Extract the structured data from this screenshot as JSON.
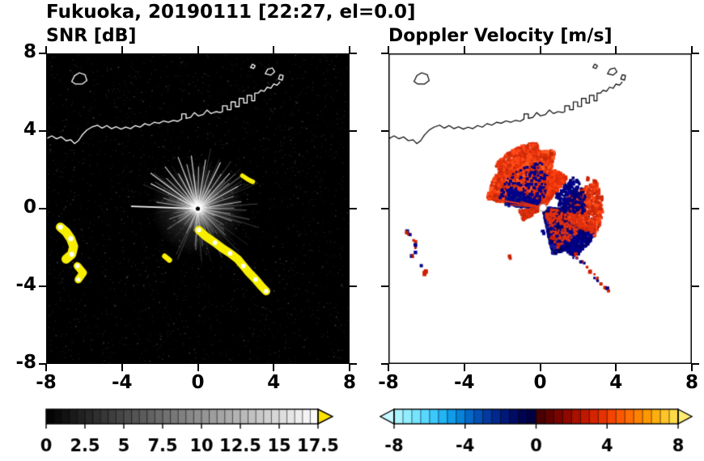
{
  "title": "Fukuoka, 20190111 [22:27, el=0.0]",
  "panels": {
    "snr": {
      "subtitle": "SNR [dB]"
    },
    "doppler": {
      "subtitle": "Doppler Velocity [m/s]"
    }
  },
  "axes": {
    "xlim": [
      -8,
      8
    ],
    "ylim": [
      -8,
      8
    ],
    "xticks": [
      -8,
      -4,
      0,
      4,
      8
    ],
    "yticks": [
      8,
      4,
      0,
      -4,
      -8
    ],
    "xtick_labels": [
      "-8",
      "-4",
      "0",
      "4",
      "8"
    ],
    "ytick_labels": [
      "8",
      "4",
      "0",
      "-4",
      "-8"
    ]
  },
  "coastline": {
    "mainland": [
      [
        -8.0,
        3.6
      ],
      [
        -7.7,
        3.75
      ],
      [
        -7.45,
        3.6
      ],
      [
        -7.2,
        3.7
      ],
      [
        -6.95,
        3.5
      ],
      [
        -6.7,
        3.55
      ],
      [
        -6.5,
        3.35
      ],
      [
        -6.3,
        3.5
      ],
      [
        -6.1,
        3.8
      ],
      [
        -5.85,
        4.05
      ],
      [
        -5.6,
        4.2
      ],
      [
        -5.3,
        4.3
      ],
      [
        -5.05,
        4.15
      ],
      [
        -4.8,
        4.28
      ],
      [
        -4.55,
        4.12
      ],
      [
        -4.3,
        4.22
      ],
      [
        -4.05,
        4.1
      ],
      [
        -3.8,
        4.2
      ],
      [
        -3.55,
        4.12
      ],
      [
        -3.3,
        4.28
      ],
      [
        -3.05,
        4.2
      ],
      [
        -2.8,
        4.38
      ],
      [
        -2.55,
        4.3
      ],
      [
        -2.3,
        4.45
      ],
      [
        -2.05,
        4.4
      ],
      [
        -1.8,
        4.52
      ],
      [
        -1.55,
        4.45
      ],
      [
        -1.3,
        4.55
      ],
      [
        -1.05,
        4.5
      ],
      [
        -0.85,
        4.62
      ],
      [
        -0.85,
        4.88
      ],
      [
        -0.62,
        4.88
      ],
      [
        -0.62,
        4.65
      ],
      [
        -0.38,
        4.7
      ],
      [
        -0.18,
        4.95
      ],
      [
        0.02,
        4.78
      ],
      [
        0.28,
        4.85
      ],
      [
        0.48,
        5.08
      ],
      [
        0.7,
        4.9
      ],
      [
        0.95,
        5.0
      ],
      [
        1.18,
        4.95
      ],
      [
        1.3,
        5.0
      ],
      [
        1.3,
        5.3
      ],
      [
        1.55,
        5.3
      ],
      [
        1.55,
        5.1
      ],
      [
        1.75,
        5.1
      ],
      [
        1.75,
        5.5
      ],
      [
        1.98,
        5.5
      ],
      [
        1.98,
        5.26
      ],
      [
        2.18,
        5.26
      ],
      [
        2.18,
        5.68
      ],
      [
        2.42,
        5.68
      ],
      [
        2.42,
        5.44
      ],
      [
        2.6,
        5.44
      ],
      [
        2.6,
        5.84
      ],
      [
        2.84,
        5.84
      ],
      [
        2.84,
        5.56
      ],
      [
        3.0,
        5.56
      ],
      [
        3.0,
        5.95
      ],
      [
        3.18,
        5.95
      ],
      [
        3.32,
        6.1
      ],
      [
        3.5,
        6.05
      ],
      [
        3.66,
        6.26
      ],
      [
        3.85,
        6.2
      ],
      [
        4.0,
        6.42
      ],
      [
        4.18,
        6.36
      ],
      [
        4.32,
        6.52
      ]
    ],
    "islands": [
      [
        [
          -6.65,
          6.55
        ],
        [
          -6.5,
          6.85
        ],
        [
          -6.25,
          7.0
        ],
        [
          -5.95,
          6.9
        ],
        [
          -5.85,
          6.6
        ],
        [
          -6.1,
          6.42
        ],
        [
          -6.45,
          6.42
        ]
      ],
      [
        [
          3.55,
          6.95
        ],
        [
          3.68,
          7.18
        ],
        [
          3.93,
          7.25
        ],
        [
          4.05,
          7.05
        ],
        [
          3.85,
          6.88
        ]
      ],
      [
        [
          4.25,
          6.68
        ],
        [
          4.33,
          6.9
        ],
        [
          4.5,
          6.86
        ],
        [
          4.45,
          6.62
        ]
      ],
      [
        [
          2.78,
          7.28
        ],
        [
          2.88,
          7.45
        ],
        [
          3.02,
          7.36
        ],
        [
          2.94,
          7.22
        ]
      ]
    ]
  },
  "echoes": {
    "chains": [
      {
        "name": "west-arc-upper",
        "points": [
          [
            -7.25,
            -0.95
          ],
          [
            -6.95,
            -1.2
          ],
          [
            -6.7,
            -1.55
          ],
          [
            -6.55,
            -1.95
          ],
          [
            -6.65,
            -2.35
          ],
          [
            -6.95,
            -2.6
          ]
        ],
        "r": 0.24
      },
      {
        "name": "west-arc-lower",
        "points": [
          [
            -6.35,
            -2.95
          ],
          [
            -6.05,
            -3.3
          ],
          [
            -6.3,
            -3.65
          ]
        ],
        "r": 0.2
      },
      {
        "name": "southeast-arc",
        "points": [
          [
            0.05,
            -1.1
          ],
          [
            0.45,
            -1.45
          ],
          [
            0.9,
            -1.75
          ],
          [
            1.3,
            -2.05
          ],
          [
            1.7,
            -2.3
          ],
          [
            2.1,
            -2.6
          ],
          [
            2.4,
            -2.95
          ],
          [
            2.7,
            -3.3
          ],
          [
            3.05,
            -3.65
          ],
          [
            3.35,
            -4.0
          ],
          [
            3.6,
            -4.25
          ]
        ],
        "r": 0.22
      },
      {
        "name": "small-dash-southwest",
        "points": [
          [
            -1.75,
            -2.45
          ],
          [
            -1.5,
            -2.65
          ]
        ],
        "r": 0.14
      },
      {
        "name": "small-dash-northeast",
        "points": [
          [
            2.35,
            1.7
          ],
          [
            2.65,
            1.5
          ],
          [
            2.9,
            1.38
          ]
        ],
        "r": 0.12
      }
    ]
  },
  "chart_data": [
    {
      "type": "heatmap",
      "title": "SNR [dB]",
      "xlabel": "",
      "ylabel": "",
      "xlim": [
        -8,
        8
      ],
      "ylim": [
        -8,
        8
      ],
      "xticks": [
        -8,
        -4,
        0,
        4,
        8
      ],
      "yticks": [
        -8,
        -4,
        0,
        4,
        8
      ],
      "background": "#000000",
      "radar_center": [
        0,
        0
      ],
      "echo_color": "#f8ef00",
      "clutter": {
        "seed": 13,
        "ray_count": 150,
        "noise_count": 2600,
        "max_range_km": 3.0
      },
      "bright_rays": [
        [
          178,
          3.5,
          1.6,
          0.95
        ],
        [
          171,
          2.2,
          1.1,
          0.65
        ],
        [
          163,
          1.9,
          1.0,
          0.55
        ],
        [
          152,
          2.8,
          1.3,
          0.8
        ],
        [
          143,
          3.1,
          1.3,
          0.85
        ],
        [
          136,
          2.3,
          1.1,
          0.65
        ],
        [
          128,
          2.8,
          1.2,
          0.75
        ],
        [
          119,
          2.1,
          1.3,
          0.75
        ],
        [
          111,
          2.9,
          1.2,
          0.8
        ],
        [
          104,
          2.4,
          1.1,
          0.7
        ],
        [
          97,
          2.8,
          1.3,
          0.8
        ],
        [
          89,
          2.2,
          1.1,
          0.7
        ],
        [
          81,
          2.6,
          1.2,
          0.78
        ],
        [
          73,
          2.1,
          1.0,
          0.65
        ],
        [
          64,
          2.7,
          1.3,
          0.78
        ],
        [
          56,
          2.2,
          1.0,
          0.65
        ],
        [
          48,
          2.5,
          1.2,
          0.72
        ],
        [
          39,
          2.1,
          1.0,
          0.65
        ],
        [
          29,
          2.4,
          1.2,
          0.7
        ],
        [
          19,
          2.0,
          1.0,
          0.6
        ],
        [
          9,
          2.3,
          1.1,
          0.68
        ],
        [
          1,
          1.9,
          1.0,
          0.55
        ],
        [
          -9,
          1.7,
          1.0,
          0.5
        ],
        [
          -20,
          1.9,
          1.0,
          0.55
        ],
        [
          -32,
          1.6,
          0.9,
          0.5
        ],
        [
          -44,
          2.0,
          1.0,
          0.6
        ],
        [
          -57,
          1.5,
          0.9,
          0.5
        ],
        [
          -70,
          1.2,
          0.9,
          0.45
        ],
        [
          -85,
          1.0,
          0.8,
          0.4
        ],
        [
          -100,
          1.2,
          0.9,
          0.45
        ],
        [
          -115,
          1.4,
          0.9,
          0.5
        ],
        [
          -130,
          1.1,
          0.8,
          0.42
        ],
        [
          -145,
          1.3,
          0.9,
          0.48
        ],
        [
          -160,
          1.6,
          0.9,
          0.5
        ]
      ],
      "colorbar": {
        "min": 0,
        "max": 17.5,
        "step": 0.5,
        "tick_values": [
          0,
          2.5,
          5,
          7.5,
          10,
          12.5,
          15,
          17.5
        ],
        "tick_labels": [
          "0",
          "2.5",
          "5",
          "7.5",
          "10",
          "12.5",
          "15",
          "17.5"
        ],
        "scale": [
          "#000000",
          "#ffffff"
        ],
        "over_arrow_color": "#ffe100"
      }
    },
    {
      "type": "heatmap",
      "title": "Doppler Velocity [m/s]",
      "xlabel": "",
      "ylabel": "",
      "xlim": [
        -8,
        8
      ],
      "ylim": [
        -8,
        8
      ],
      "xticks": [
        -8,
        -4,
        0,
        4,
        8
      ],
      "yticks": [
        -8,
        -4,
        0,
        4,
        8
      ],
      "background": "#ffffff",
      "center_offset": [
        0.15,
        0.05
      ],
      "velocity_colors": {
        "toward": "#cf1e00",
        "away": "#00008b"
      },
      "regions": [
        {
          "name": "red-fan-main",
          "a0": 78,
          "a1": 172,
          "r0": 0.2,
          "r1": 2.95,
          "n": 3000,
          "size": 3.4,
          "pow": 0.6,
          "seed": 21,
          "colors": [
            "#e8320a",
            "#ff4012",
            "#c22808",
            "#ff5c20",
            "#d93010"
          ]
        },
        {
          "name": "red-fan-north-bump",
          "a0": 95,
          "a1": 140,
          "r0": 2.5,
          "r1": 3.35,
          "n": 520,
          "size": 3.2,
          "pow": 0.8,
          "seed": 22,
          "colors": [
            "#e8320a",
            "#ff4a18",
            "#cc2c0c"
          ]
        },
        {
          "name": "red-upper-right",
          "a0": 50,
          "a1": 80,
          "r0": 0.2,
          "r1": 2.0,
          "n": 600,
          "size": 3.2,
          "pow": 0.7,
          "seed": 23,
          "colors": [
            "#e8320a",
            "#ff4012",
            "#d22a08"
          ]
        },
        {
          "name": "navy-lobe-southeast",
          "a0": -78,
          "a1": -5,
          "r0": 0.2,
          "r1": 2.45,
          "n": 2600,
          "size": 3.4,
          "pow": 0.6,
          "seed": 24,
          "colors": [
            "#00008b",
            "#000070",
            "#1a1a9c",
            "#000058"
          ]
        },
        {
          "name": "navy-spikes-southeast",
          "a0": -60,
          "a1": -22,
          "r0": 2.2,
          "r1": 3.05,
          "n": 420,
          "size": 3.0,
          "pow": 0.9,
          "seed": 25,
          "colors": [
            "#00008b",
            "#000070"
          ]
        },
        {
          "name": "red-fringe-east",
          "a0": -28,
          "a1": 25,
          "r0": 1.4,
          "r1": 3.15,
          "n": 760,
          "size": 3.0,
          "pow": 0.8,
          "seed": 26,
          "colors": [
            "#e03010",
            "#ff4a18",
            "#c82808"
          ]
        },
        {
          "name": "navy-edge-west",
          "a0": 148,
          "a1": 178,
          "r0": 0.4,
          "r1": 2.0,
          "n": 320,
          "size": 3.0,
          "pow": 0.8,
          "seed": 27,
          "colors": [
            "#00008b",
            "#141e78"
          ]
        },
        {
          "name": "navy-speckle-in-red",
          "a0": 80,
          "a1": 168,
          "r0": 0.3,
          "r1": 2.4,
          "n": 220,
          "size": 2.6,
          "pow": 0.7,
          "seed": 28,
          "colors": [
            "#00008b"
          ]
        },
        {
          "name": "red-speckle-in-navy",
          "a0": -72,
          "a1": -8,
          "r0": 0.3,
          "r1": 2.2,
          "n": 200,
          "size": 2.6,
          "pow": 0.7,
          "seed": 29,
          "colors": [
            "#e03010"
          ]
        },
        {
          "name": "navy-speckle-east",
          "a0": -8,
          "a1": 45,
          "r0": 0.8,
          "r1": 2.3,
          "n": 260,
          "size": 2.8,
          "pow": 0.8,
          "seed": 30,
          "colors": [
            "#00008b",
            "#000070"
          ]
        },
        {
          "name": "red-wisp-west",
          "a0": 186,
          "a1": 214,
          "r0": 0.3,
          "r1": 1.25,
          "n": 140,
          "size": 2.6,
          "pow": 0.8,
          "seed": 31,
          "colors": [
            "#e03010",
            "#c82808"
          ]
        }
      ],
      "rays": [
        [
          170,
          2.75,
          2.2,
          "#e03010"
        ],
        [
          175,
          1.7,
          1.6,
          "#e03010"
        ],
        [
          165,
          1.2,
          1.4,
          "#e03010"
        ]
      ],
      "colorbar": {
        "min": -8,
        "max": 8,
        "step": 0.5,
        "tick_values": [
          -8,
          -4,
          0,
          4,
          8
        ],
        "tick_labels": [
          "-8",
          "-4",
          "0",
          "4",
          "8"
        ],
        "segment_colors": [
          "#a8f4ff",
          "#90eeff",
          "#74e4ff",
          "#58d8ff",
          "#3cc8fc",
          "#22b4f4",
          "#0f9ce8",
          "#0682d8",
          "#0468c8",
          "#0350b4",
          "#023aa0",
          "#01288c",
          "#001878",
          "#000c64",
          "#000450",
          "#000040",
          "#480000",
          "#600000",
          "#780400",
          "#900800",
          "#a81000",
          "#c01800",
          "#d42400",
          "#e63200",
          "#f44400",
          "#fc5800",
          "#ff6c00",
          "#ff8200",
          "#ff9800",
          "#ffae10",
          "#ffc428",
          "#ffda48"
        ],
        "under_arrow_color": "#c8f8ff",
        "over_arrow_color": "#ffeb70"
      }
    }
  ]
}
